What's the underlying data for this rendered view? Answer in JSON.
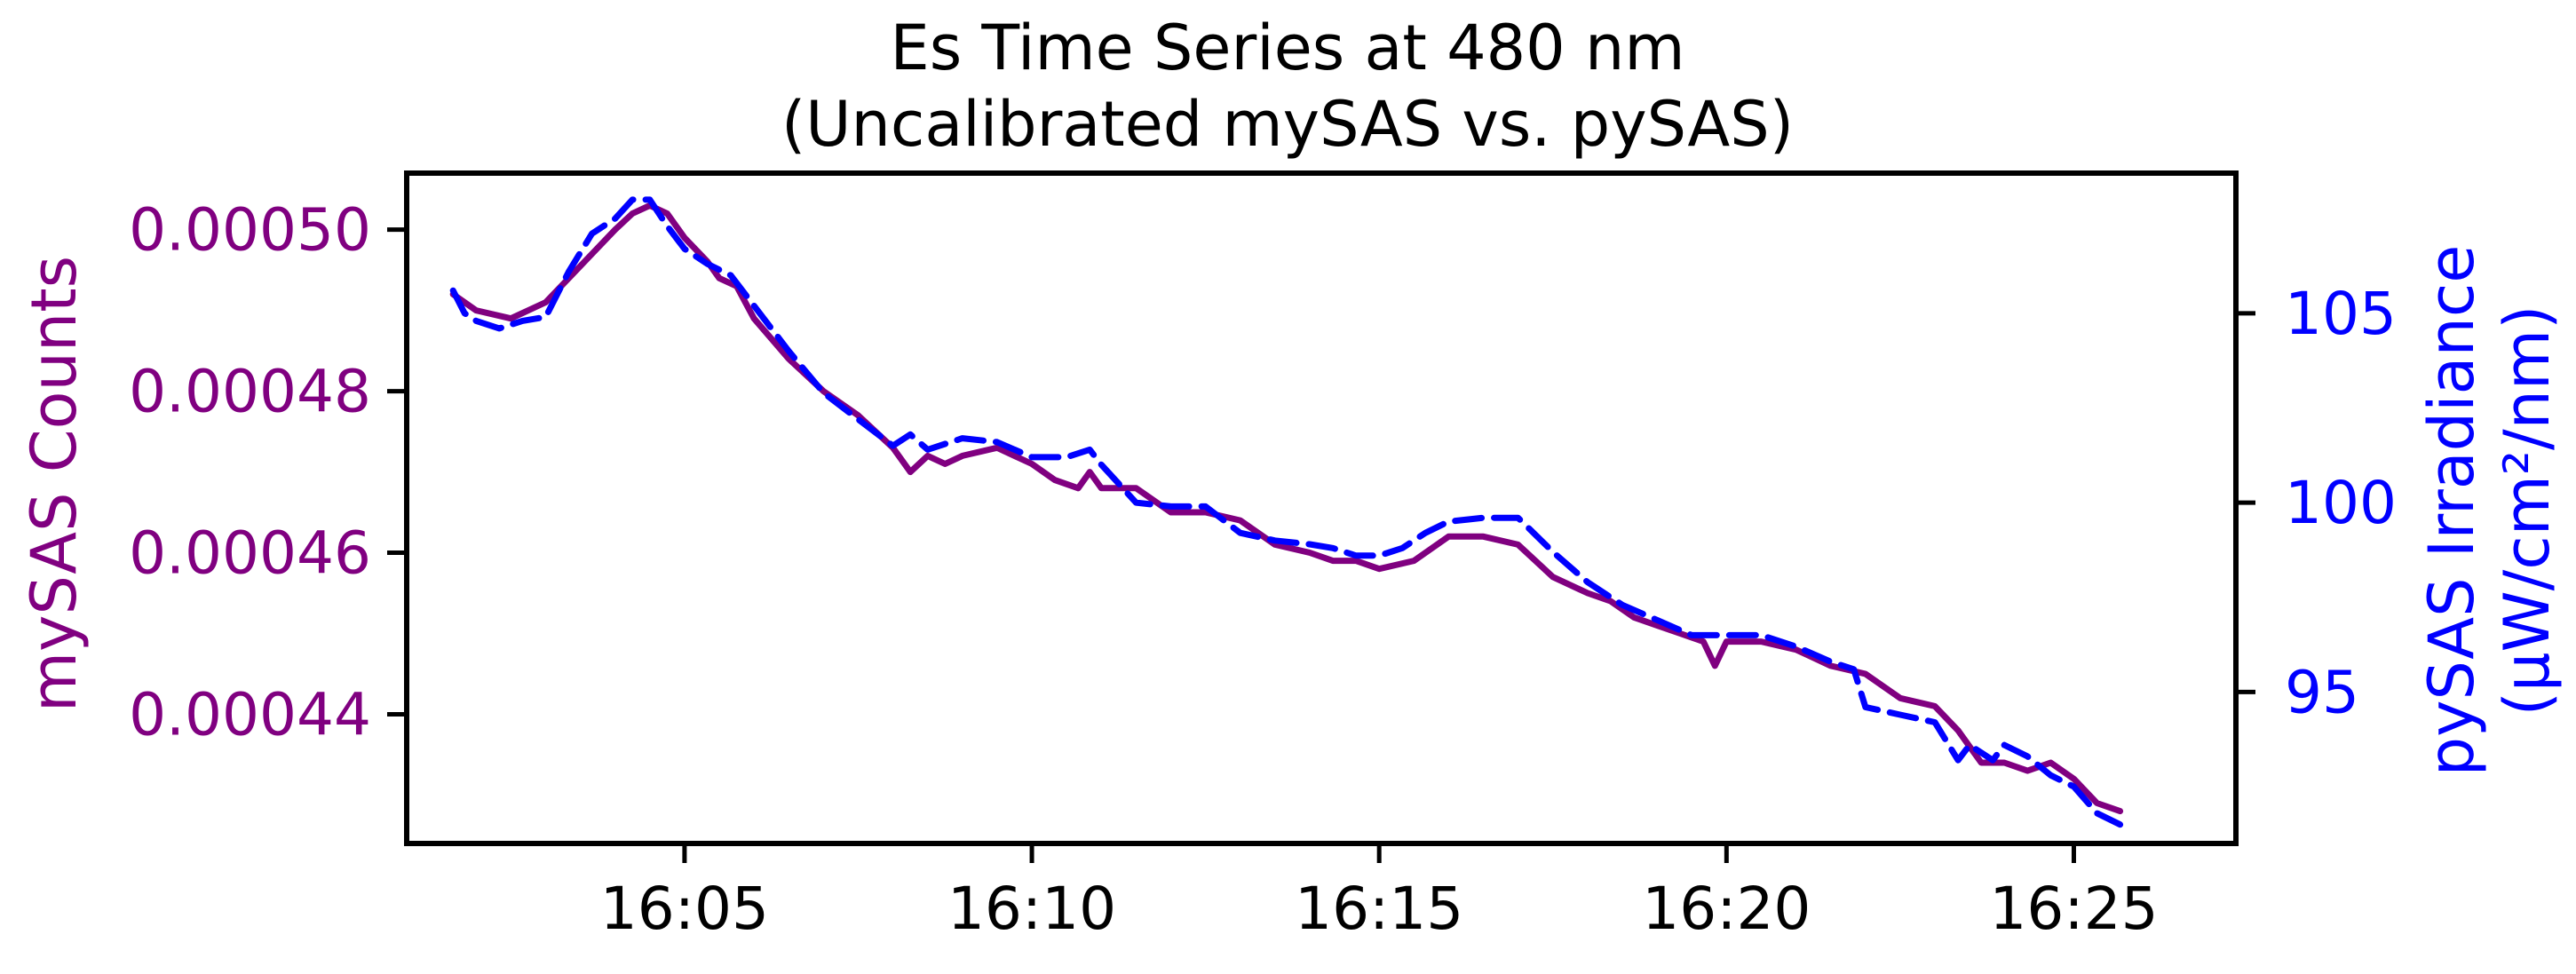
{
  "chart_data": {
    "type": "line",
    "title_line1": "Es Time Series at 480 nm",
    "title_line2": "(Uncalibrated mySAS vs. pySAS)",
    "xlabel": "",
    "xlim": [
      "16:01:00",
      "16:27:20"
    ],
    "x_ticks": [
      "16:05",
      "16:10",
      "16:15",
      "16:20",
      "16:25"
    ],
    "y_left": {
      "label": "mySAS Counts",
      "color": "#800080",
      "lim": [
        0.000424,
        0.000507
      ],
      "ticks": [
        0.0005,
        0.00048,
        0.00046,
        0.00044
      ],
      "tick_labels": [
        "0.00050",
        "0.00048",
        "0.00046",
        "0.00044"
      ]
    },
    "y_right": {
      "label_line1": "pySAS Irradiance",
      "label_line2": "(µW/cm²/nm)",
      "color": "#0000ff",
      "lim": [
        91.0,
        108.7
      ],
      "ticks": [
        105,
        100,
        95
      ],
      "tick_labels": [
        "105",
        "100",
        "95"
      ]
    },
    "grid": false,
    "legend": "none",
    "series": [
      {
        "axis": "left",
        "style": "solid",
        "color": "#800080",
        "x": [
          "16:01:40",
          "16:02:00",
          "16:02:30",
          "16:03:00",
          "16:03:20",
          "16:03:40",
          "16:04:00",
          "16:04:15",
          "16:04:30",
          "16:04:45",
          "16:05:00",
          "16:05:20",
          "16:05:30",
          "16:05:45",
          "16:06:00",
          "16:06:30",
          "16:07:00",
          "16:07:30",
          "16:08:00",
          "16:08:15",
          "16:08:30",
          "16:08:45",
          "16:09:00",
          "16:09:30",
          "16:10:00",
          "16:10:20",
          "16:10:40",
          "16:10:50",
          "16:11:00",
          "16:11:30",
          "16:12:00",
          "16:12:30",
          "16:13:00",
          "16:13:30",
          "16:14:00",
          "16:14:20",
          "16:14:40",
          "16:15:00",
          "16:15:30",
          "16:16:00",
          "16:16:30",
          "16:17:00",
          "16:17:30",
          "16:18:00",
          "16:18:20",
          "16:18:40",
          "16:19:00",
          "16:19:20",
          "16:19:40",
          "16:19:50",
          "16:20:00",
          "16:20:30",
          "16:21:00",
          "16:21:30",
          "16:22:00",
          "16:22:30",
          "16:23:00",
          "16:23:20",
          "16:23:30",
          "16:23:40",
          "16:24:00",
          "16:24:20",
          "16:24:40",
          "16:25:00",
          "16:25:20",
          "16:25:40"
        ],
        "values": [
          0.000492,
          0.00049,
          0.000489,
          0.000491,
          0.000494,
          0.000497,
          0.0005,
          0.000502,
          0.000503,
          0.000502,
          0.000499,
          0.000496,
          0.000494,
          0.000493,
          0.000489,
          0.000484,
          0.00048,
          0.000477,
          0.000473,
          0.00047,
          0.000472,
          0.000471,
          0.000472,
          0.000473,
          0.000471,
          0.000469,
          0.000468,
          0.00047,
          0.000468,
          0.000468,
          0.000465,
          0.000465,
          0.000464,
          0.000461,
          0.00046,
          0.000459,
          0.000459,
          0.000458,
          0.000459,
          0.000462,
          0.000462,
          0.000461,
          0.000457,
          0.000455,
          0.000454,
          0.000452,
          0.000451,
          0.00045,
          0.000449,
          0.000446,
          0.000449,
          0.000449,
          0.000448,
          0.000446,
          0.000445,
          0.000442,
          0.000441,
          0.000438,
          0.000436,
          0.000434,
          0.000434,
          0.000433,
          0.000434,
          0.000432,
          0.000429,
          0.000428
        ]
      },
      {
        "axis": "right",
        "style": "dashed",
        "color": "#0000ff",
        "x": [
          "16:01:40",
          "16:01:50",
          "16:02:00",
          "16:02:20",
          "16:02:40",
          "16:03:00",
          "16:03:20",
          "16:03:40",
          "16:04:00",
          "16:04:15",
          "16:04:30",
          "16:04:45",
          "16:05:00",
          "16:05:20",
          "16:05:40",
          "16:06:00",
          "16:06:30",
          "16:07:00",
          "16:07:30",
          "16:08:00",
          "16:08:15",
          "16:08:30",
          "16:09:00",
          "16:09:30",
          "16:10:00",
          "16:10:30",
          "16:10:50",
          "16:11:00",
          "16:11:30",
          "16:12:00",
          "16:12:30",
          "16:13:00",
          "16:13:30",
          "16:14:00",
          "16:14:20",
          "16:14:40",
          "16:15:00",
          "16:15:20",
          "16:15:40",
          "16:16:00",
          "16:16:30",
          "16:17:00",
          "16:17:30",
          "16:18:00",
          "16:18:30",
          "16:19:00",
          "16:19:30",
          "16:20:00",
          "16:20:30",
          "16:21:00",
          "16:21:30",
          "16:21:50",
          "16:22:00",
          "16:22:30",
          "16:23:00",
          "16:23:20",
          "16:23:30",
          "16:23:50",
          "16:24:00",
          "16:24:20",
          "16:24:40",
          "16:25:00",
          "16:25:20",
          "16:25:40"
        ],
        "values": [
          105.6,
          105.0,
          104.8,
          104.6,
          104.8,
          104.9,
          106.1,
          107.1,
          107.5,
          108.0,
          108.0,
          107.3,
          106.7,
          106.3,
          106.0,
          105.2,
          104.0,
          102.9,
          102.2,
          101.5,
          101.8,
          101.4,
          101.7,
          101.6,
          101.2,
          101.2,
          101.4,
          101.0,
          100.0,
          99.9,
          99.9,
          99.2,
          99.0,
          98.9,
          98.8,
          98.6,
          98.6,
          98.8,
          99.2,
          99.5,
          99.6,
          99.6,
          98.7,
          97.9,
          97.3,
          96.9,
          96.5,
          96.5,
          96.5,
          96.2,
          95.8,
          95.6,
          94.6,
          94.4,
          94.2,
          93.2,
          93.6,
          93.2,
          93.6,
          93.3,
          92.8,
          92.5,
          91.8,
          91.5
        ]
      }
    ]
  }
}
